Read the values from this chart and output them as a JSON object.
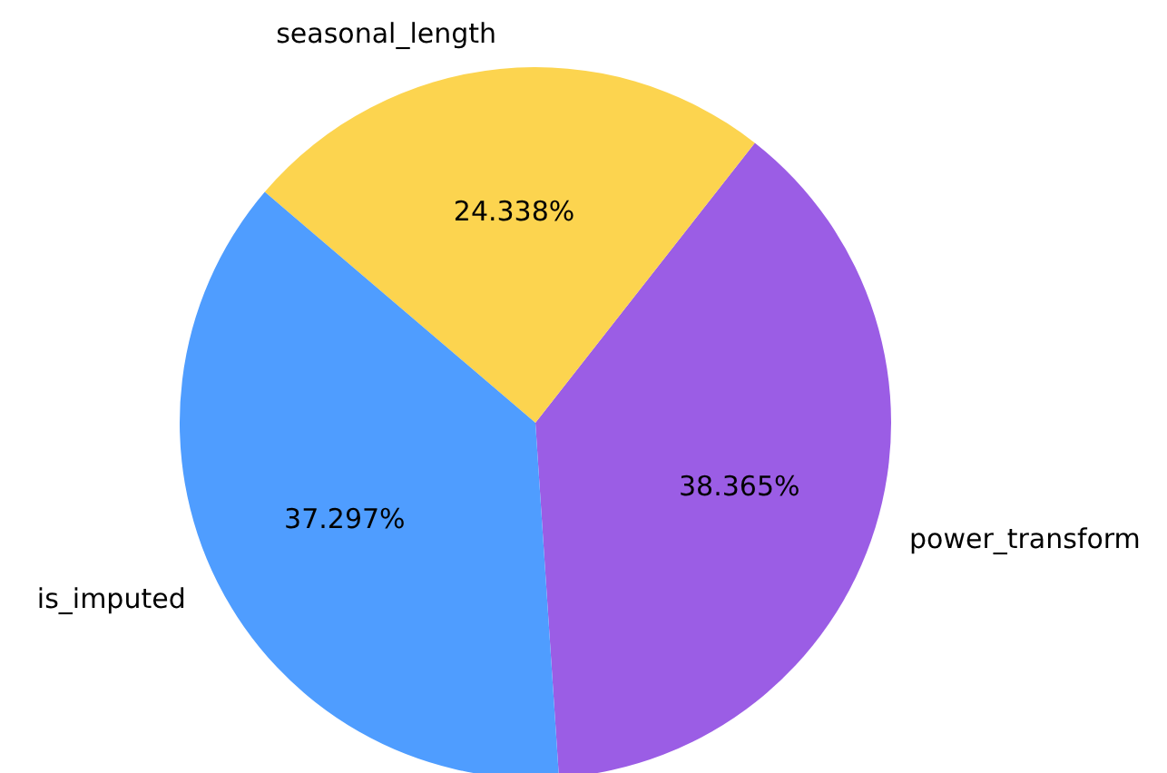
{
  "chart_data": {
    "type": "pie",
    "categories": [
      "power_transform",
      "seasonal_length",
      "is_imputed"
    ],
    "values": [
      38.365,
      24.338,
      37.297
    ],
    "colors": [
      "#9b5de5",
      "#fcd44f",
      "#4f9dff"
    ],
    "value_labels": [
      "38.365%",
      "24.338%",
      "37.297%"
    ]
  }
}
